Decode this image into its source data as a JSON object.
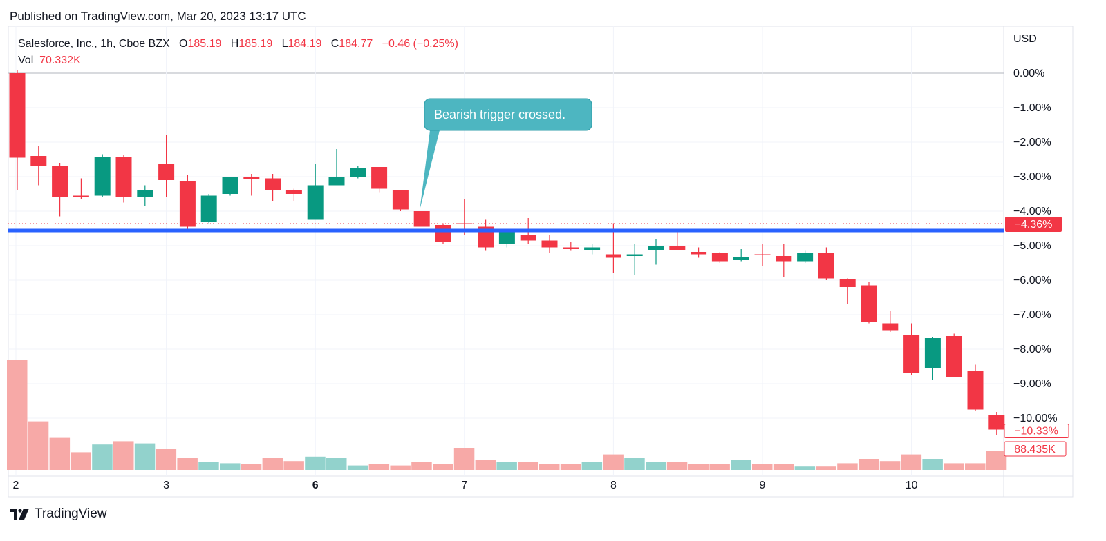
{
  "header": {
    "published": "Published on TradingView.com, Mar 20, 2023 13:17 UTC"
  },
  "legend": {
    "symbol": "Salesforce, Inc., 1h, Cboe BZX",
    "o_label": "O",
    "o_value": "185.19",
    "h_label": "H",
    "h_value": "185.19",
    "l_label": "L",
    "l_value": "184.19",
    "c_label": "C",
    "c_value": "184.77",
    "change": "−0.46 (−0.25%)",
    "vol_label": "Vol",
    "vol_value": "70.332K"
  },
  "footer": {
    "brand": "TradingView",
    "logo_icon": "tradingview-logo-icon"
  },
  "colors": {
    "up": "#089981",
    "down": "#f23645",
    "vol_up": "#92d2cc",
    "vol_down": "#f7a9a7",
    "trigger_line": "#2962ff",
    "callout": "#4db6c1",
    "grid": "#f0f3fa"
  },
  "chart_data": {
    "type": "candlestick",
    "axis_currency": "USD",
    "y_unit": "percent change",
    "ylim": [
      -10.6,
      0.2
    ],
    "y_ticks": [
      0,
      -1,
      -2,
      -3,
      -4,
      -5,
      -6,
      -7,
      -8,
      -9,
      -10
    ],
    "y_tick_labels": [
      "0.00%",
      "−1.00%",
      "−2.00%",
      "−3.00%",
      "−4.00%",
      "−5.00%",
      "−6.00%",
      "−7.00%",
      "−8.00%",
      "−9.00%",
      "−10.00%"
    ],
    "x_labels": [
      {
        "index": 0,
        "label": "2",
        "bold": false
      },
      {
        "index": 7,
        "label": "3",
        "bold": false
      },
      {
        "index": 14,
        "label": "6",
        "bold": true
      },
      {
        "index": 21,
        "label": "7",
        "bold": false
      },
      {
        "index": 28,
        "label": "8",
        "bold": false
      },
      {
        "index": 35,
        "label": "9",
        "bold": false
      },
      {
        "index": 42,
        "label": "10",
        "bold": false
      }
    ],
    "grid": true,
    "candles": [
      {
        "o": 0.0,
        "h": 0.1,
        "l": -3.4,
        "c": -2.45,
        "v": 100
      },
      {
        "o": -2.4,
        "h": -2.1,
        "l": -3.25,
        "c": -2.7,
        "v": 44
      },
      {
        "o": -2.7,
        "h": -2.6,
        "l": -4.15,
        "c": -3.6,
        "v": 29
      },
      {
        "o": -3.55,
        "h": -3.05,
        "l": -3.65,
        "c": -3.58,
        "v": 16
      },
      {
        "o": -3.55,
        "h": -2.35,
        "l": -3.6,
        "c": -2.42,
        "v": 23
      },
      {
        "o": -2.42,
        "h": -2.38,
        "l": -3.75,
        "c": -3.6,
        "v": 26
      },
      {
        "o": -3.6,
        "h": -3.25,
        "l": -3.85,
        "c": -3.4,
        "v": 24
      },
      {
        "o": -2.62,
        "h": -1.8,
        "l": -3.6,
        "c": -3.1,
        "v": 19
      },
      {
        "o": -3.12,
        "h": -2.95,
        "l": -4.55,
        "c": -4.45,
        "v": 11
      },
      {
        "o": -4.3,
        "h": -3.5,
        "l": -4.35,
        "c": -3.55,
        "v": 7
      },
      {
        "o": -3.5,
        "h": -3.0,
        "l": -3.55,
        "c": -3.0,
        "v": 6
      },
      {
        "o": -3.0,
        "h": -2.92,
        "l": -3.55,
        "c": -3.08,
        "v": 5
      },
      {
        "o": -3.05,
        "h": -2.92,
        "l": -3.7,
        "c": -3.4,
        "v": 11
      },
      {
        "o": -3.4,
        "h": -3.35,
        "l": -3.7,
        "c": -3.5,
        "v": 8
      },
      {
        "o": -4.25,
        "h": -2.62,
        "l": -4.25,
        "c": -3.25,
        "v": 12
      },
      {
        "o": -3.25,
        "h": -2.2,
        "l": -3.25,
        "c": -3.02,
        "v": 11
      },
      {
        "o": -3.02,
        "h": -2.7,
        "l": -3.05,
        "c": -2.75,
        "v": 4
      },
      {
        "o": -2.72,
        "h": -2.72,
        "l": -3.45,
        "c": -3.35,
        "v": 5
      },
      {
        "o": -3.4,
        "h": -3.4,
        "l": -4.0,
        "c": -3.95,
        "v": 4
      },
      {
        "o": -4.0,
        "h": -4.0,
        "l": -4.45,
        "c": -4.45,
        "v": 7
      },
      {
        "o": -4.4,
        "h": -4.35,
        "l": -4.95,
        "c": -4.9,
        "v": 5
      },
      {
        "o": -4.35,
        "h": -3.65,
        "l": -4.7,
        "c": -4.36,
        "v": 20
      },
      {
        "o": -4.45,
        "h": -4.25,
        "l": -5.15,
        "c": -5.05,
        "v": 9
      },
      {
        "o": -4.95,
        "h": -4.55,
        "l": -5.05,
        "c": -4.55,
        "v": 7
      },
      {
        "o": -4.7,
        "h": -4.2,
        "l": -4.95,
        "c": -4.85,
        "v": 7
      },
      {
        "o": -4.85,
        "h": -4.7,
        "l": -5.2,
        "c": -5.05,
        "v": 5
      },
      {
        "o": -5.05,
        "h": -4.9,
        "l": -5.15,
        "c": -5.1,
        "v": 5
      },
      {
        "o": -5.12,
        "h": -4.95,
        "l": -5.25,
        "c": -5.05,
        "v": 7
      },
      {
        "o": -5.25,
        "h": -4.35,
        "l": -5.8,
        "c": -5.35,
        "v": 14
      },
      {
        "o": -5.3,
        "h": -4.95,
        "l": -5.85,
        "c": -5.25,
        "v": 11
      },
      {
        "o": -5.12,
        "h": -4.8,
        "l": -5.55,
        "c": -5.02,
        "v": 7
      },
      {
        "o": -5.0,
        "h": -4.6,
        "l": -5.1,
        "c": -5.12,
        "v": 7
      },
      {
        "o": -5.18,
        "h": -5.05,
        "l": -5.35,
        "c": -5.25,
        "v": 5
      },
      {
        "o": -5.22,
        "h": -5.18,
        "l": -5.5,
        "c": -5.45,
        "v": 5
      },
      {
        "o": -5.42,
        "h": -5.1,
        "l": -5.45,
        "c": -5.32,
        "v": 9
      },
      {
        "o": -5.25,
        "h": -4.95,
        "l": -5.6,
        "c": -5.28,
        "v": 5
      },
      {
        "o": -5.3,
        "h": -4.95,
        "l": -5.9,
        "c": -5.45,
        "v": 5
      },
      {
        "o": -5.45,
        "h": -5.15,
        "l": -5.5,
        "c": -5.2,
        "v": 3
      },
      {
        "o": -5.22,
        "h": -5.05,
        "l": -6.0,
        "c": -5.95,
        "v": 3
      },
      {
        "o": -5.98,
        "h": -5.95,
        "l": -6.7,
        "c": -6.2,
        "v": 6
      },
      {
        "o": -6.15,
        "h": -6.05,
        "l": -7.25,
        "c": -7.2,
        "v": 10
      },
      {
        "o": -7.25,
        "h": -6.9,
        "l": -7.5,
        "c": -7.45,
        "v": 8
      },
      {
        "o": -7.6,
        "h": -7.25,
        "l": -8.75,
        "c": -8.7,
        "v": 14
      },
      {
        "o": -8.55,
        "h": -7.65,
        "l": -8.9,
        "c": -7.68,
        "v": 10
      },
      {
        "o": -7.62,
        "h": -7.55,
        "l": -8.8,
        "c": -8.8,
        "v": 6
      },
      {
        "o": -8.62,
        "h": -8.45,
        "l": -9.8,
        "c": -9.75,
        "v": 6
      },
      {
        "o": -9.9,
        "h": -9.82,
        "l": -10.5,
        "c": -10.33,
        "v": 17
      }
    ],
    "trigger_line": {
      "value": -4.5
    },
    "last_price_line": {
      "value": -4.36,
      "label": "−4.36%"
    },
    "last_change": {
      "value": -10.33,
      "label": "−10.33%"
    },
    "volume_last": {
      "label": "88.435K"
    },
    "annotations": [
      {
        "text": "Bearish trigger crossed.",
        "candle_index": 19,
        "price": -4.0
      }
    ]
  }
}
